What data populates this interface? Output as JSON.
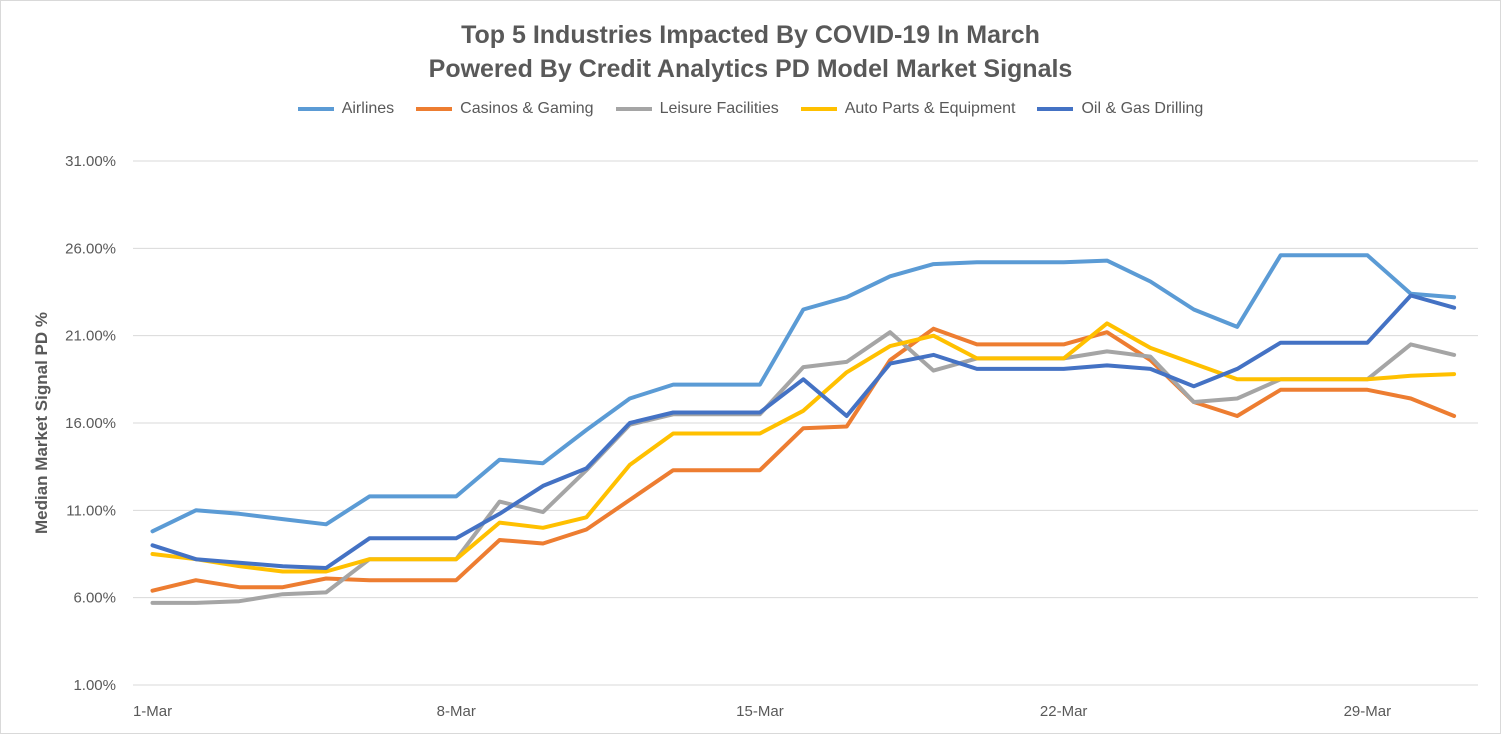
{
  "chart_data": {
    "type": "line",
    "title_line1": "Top 5 Industries Impacted By COVID-19 In March",
    "title_line2": "Powered By Credit Analytics PD Model Market Signals",
    "ylabel": "Median Market Signal PD %",
    "xlabel": "",
    "ylim": [
      1,
      31
    ],
    "yticks": [
      "1.00%",
      "6.00%",
      "11.00%",
      "16.00%",
      "21.00%",
      "26.00%",
      "31.00%"
    ],
    "ytick_values": [
      1,
      6,
      11,
      16,
      21,
      26,
      31
    ],
    "x": [
      1,
      2,
      3,
      4,
      5,
      6,
      7,
      8,
      9,
      10,
      11,
      12,
      13,
      14,
      15,
      16,
      17,
      18,
      19,
      20,
      21,
      22,
      23,
      24,
      25,
      26,
      27,
      28,
      29,
      30,
      31
    ],
    "xticks": [
      {
        "label": "1-Mar",
        "value": 1
      },
      {
        "label": "8-Mar",
        "value": 8
      },
      {
        "label": "15-Mar",
        "value": 15
      },
      {
        "label": "22-Mar",
        "value": 22
      },
      {
        "label": "29-Mar",
        "value": 29
      }
    ],
    "grid": true,
    "legend_position": "top",
    "series": [
      {
        "name": "Airlines",
        "color": "#5b9bd5",
        "values": [
          9.8,
          11.0,
          10.8,
          10.5,
          10.2,
          11.8,
          11.8,
          11.8,
          13.9,
          13.7,
          15.6,
          17.4,
          18.2,
          18.2,
          18.2,
          22.5,
          23.2,
          24.4,
          25.1,
          25.2,
          25.2,
          25.2,
          25.3,
          24.1,
          22.5,
          21.5,
          25.6,
          25.6,
          25.6,
          23.4,
          23.2
        ]
      },
      {
        "name": "Casinos & Gaming",
        "color": "#ed7d31",
        "values": [
          6.4,
          7.0,
          6.6,
          6.6,
          7.1,
          7.0,
          7.0,
          7.0,
          9.3,
          9.1,
          9.9,
          11.6,
          13.3,
          13.3,
          13.3,
          15.7,
          15.8,
          19.6,
          21.4,
          20.5,
          20.5,
          20.5,
          21.2,
          19.6,
          17.2,
          16.4,
          17.9,
          17.9,
          17.9,
          17.4,
          16.4
        ]
      },
      {
        "name": "Leisure Facilities",
        "color": "#a5a5a5",
        "values": [
          5.7,
          5.7,
          5.8,
          6.2,
          6.3,
          8.2,
          8.2,
          8.2,
          11.5,
          10.9,
          13.3,
          15.9,
          16.5,
          16.5,
          16.5,
          19.2,
          19.5,
          21.2,
          19.0,
          19.7,
          19.7,
          19.7,
          20.1,
          19.8,
          17.2,
          17.4,
          18.5,
          18.5,
          18.5,
          20.5,
          19.9
        ]
      },
      {
        "name": "Auto Parts & Equipment",
        "color": "#ffc000",
        "values": [
          8.5,
          8.2,
          7.8,
          7.5,
          7.5,
          8.2,
          8.2,
          8.2,
          10.3,
          10.0,
          10.6,
          13.6,
          15.4,
          15.4,
          15.4,
          16.7,
          18.9,
          20.4,
          21.0,
          19.7,
          19.7,
          19.7,
          21.7,
          20.3,
          19.4,
          18.5,
          18.5,
          18.5,
          18.5,
          18.7,
          18.8
        ]
      },
      {
        "name": "Oil & Gas Drilling",
        "color": "#4472c4",
        "values": [
          9.0,
          8.2,
          8.0,
          7.8,
          7.7,
          9.4,
          9.4,
          9.4,
          10.8,
          12.4,
          13.4,
          16.0,
          16.6,
          16.6,
          16.6,
          18.5,
          16.4,
          19.4,
          19.9,
          19.1,
          19.1,
          19.1,
          19.3,
          19.1,
          18.1,
          19.1,
          20.6,
          20.6,
          20.6,
          23.3,
          22.6
        ]
      }
    ]
  }
}
